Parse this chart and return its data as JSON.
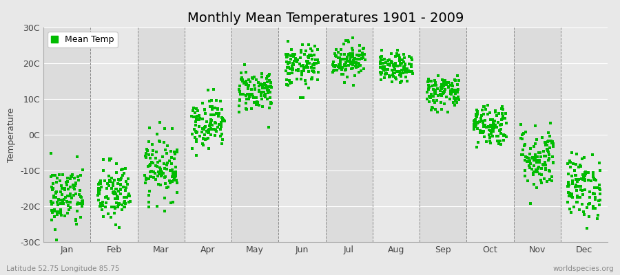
{
  "title": "Monthly Mean Temperatures 1901 - 2009",
  "ylabel": "Temperature",
  "lat_lon_label": "Latitude 52.75 Longitude 85.75",
  "watermark": "worldspecies.org",
  "ylim": [
    -30,
    30
  ],
  "yticks": [
    -30,
    -20,
    -10,
    0,
    10,
    20,
    30
  ],
  "ytick_labels": [
    "-30C",
    "-20C",
    "-10C",
    "0C",
    "10C",
    "20C",
    "30C"
  ],
  "months": [
    "Jan",
    "Feb",
    "Mar",
    "Apr",
    "May",
    "Jun",
    "Jul",
    "Aug",
    "Sep",
    "Oct",
    "Nov",
    "Dec"
  ],
  "dot_color": "#00BB00",
  "bg_color": "#E8E8E8",
  "plot_bg_color": "#E8E8E8",
  "legend_label": "Mean Temp",
  "title_fontsize": 14,
  "label_fontsize": 9,
  "tick_fontsize": 9,
  "month_means": [
    -17.5,
    -16.5,
    -9.0,
    3.5,
    12.5,
    19.0,
    21.0,
    18.5,
    12.0,
    3.0,
    -6.5,
    -14.5
  ],
  "month_stds": [
    4.5,
    4.5,
    4.5,
    3.5,
    3.0,
    3.0,
    2.5,
    2.0,
    2.5,
    3.0,
    4.5,
    4.5
  ],
  "n_years": 109,
  "seed": 42
}
